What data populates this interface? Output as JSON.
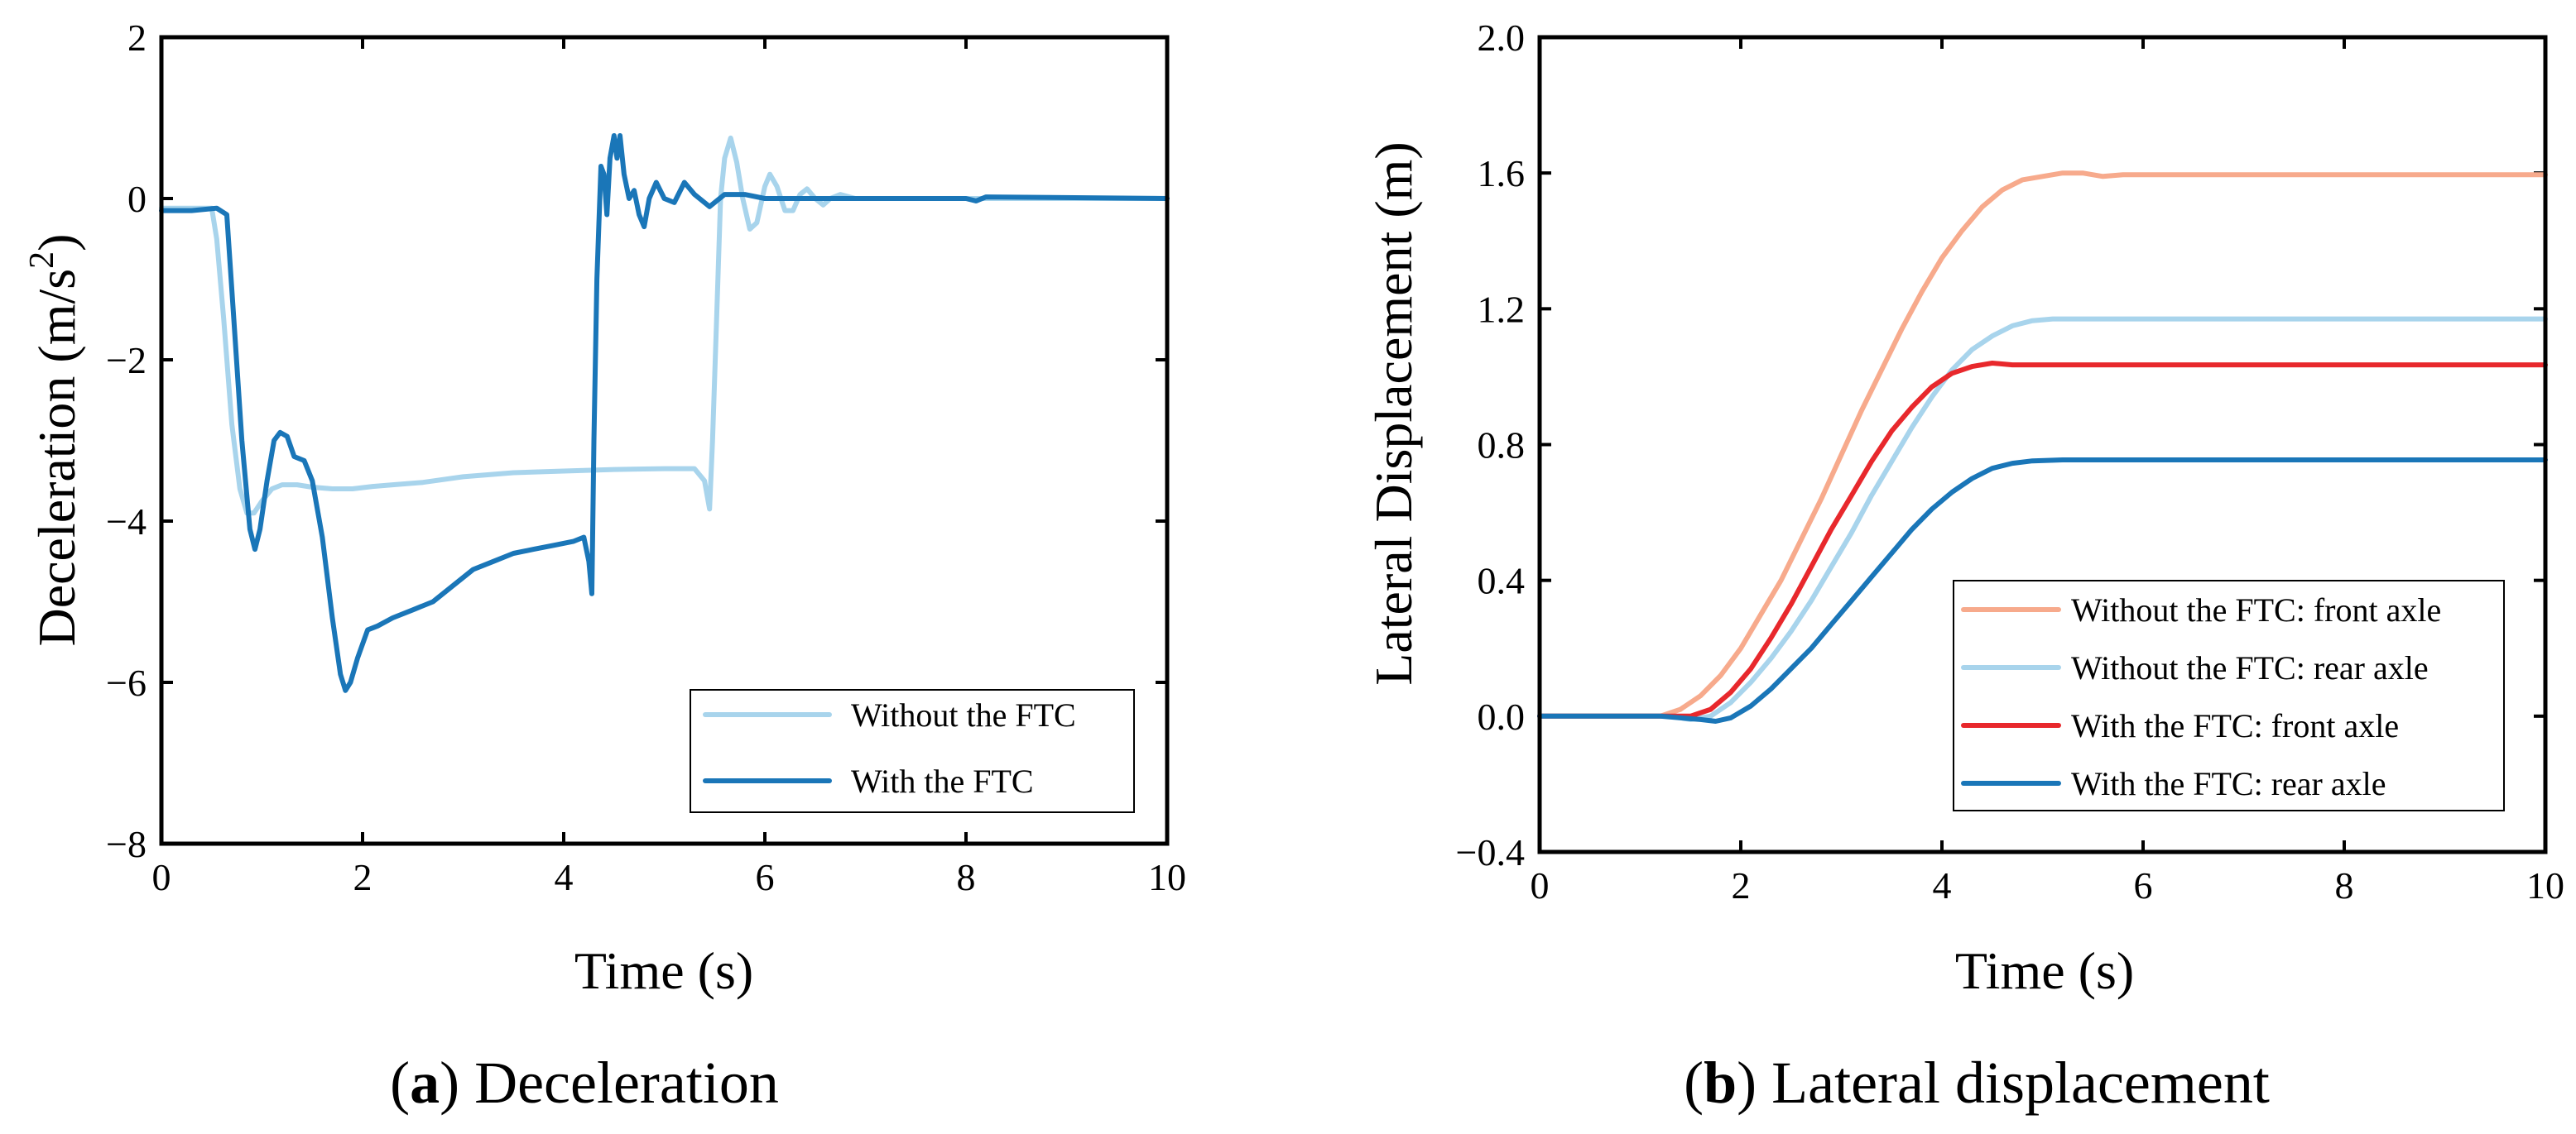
{
  "chart_data": [
    {
      "type": "line",
      "xlabel": "Time (s)",
      "ylabel": "Deceleration (m/s",
      "ylabel_sup": "2",
      "ylabel_close": ")",
      "xlim": [
        0,
        10
      ],
      "ylim": [
        -8,
        2
      ],
      "xticks": [
        0,
        2,
        4,
        6,
        8,
        10
      ],
      "yticks": [
        -8,
        -6,
        -4,
        -2,
        0,
        2
      ],
      "xtick_labels": [
        "0",
        "2",
        "4",
        "6",
        "8",
        "10"
      ],
      "ytick_labels": [
        "−8",
        "−6",
        "−4",
        "−2",
        "0",
        "2"
      ],
      "caption_letter": "a",
      "caption_text": "Deceleration",
      "legend_position": "lower-right",
      "series": [
        {
          "name": "Without the FTC",
          "color": "#a8d4ec",
          "points": [
            [
              0,
              -0.12
            ],
            [
              0.5,
              -0.12
            ],
            [
              0.55,
              -0.5
            ],
            [
              0.62,
              -1.5
            ],
            [
              0.7,
              -2.8
            ],
            [
              0.78,
              -3.6
            ],
            [
              0.85,
              -3.9
            ],
            [
              0.92,
              -3.9
            ],
            [
              1.0,
              -3.75
            ],
            [
              1.1,
              -3.6
            ],
            [
              1.2,
              -3.55
            ],
            [
              1.35,
              -3.55
            ],
            [
              1.5,
              -3.58
            ],
            [
              1.7,
              -3.6
            ],
            [
              1.9,
              -3.6
            ],
            [
              2.1,
              -3.57
            ],
            [
              2.3,
              -3.55
            ],
            [
              2.6,
              -3.52
            ],
            [
              3.0,
              -3.45
            ],
            [
              3.5,
              -3.4
            ],
            [
              4.0,
              -3.38
            ],
            [
              4.5,
              -3.36
            ],
            [
              5.0,
              -3.35
            ],
            [
              5.3,
              -3.35
            ],
            [
              5.4,
              -3.5
            ],
            [
              5.45,
              -3.85
            ],
            [
              5.48,
              -3.0
            ],
            [
              5.52,
              -1.5
            ],
            [
              5.56,
              0.0
            ],
            [
              5.6,
              0.5
            ],
            [
              5.66,
              0.75
            ],
            [
              5.72,
              0.45
            ],
            [
              5.78,
              0.0
            ],
            [
              5.85,
              -0.38
            ],
            [
              5.92,
              -0.3
            ],
            [
              6.0,
              0.15
            ],
            [
              6.05,
              0.3
            ],
            [
              6.12,
              0.15
            ],
            [
              6.2,
              -0.15
            ],
            [
              6.28,
              -0.15
            ],
            [
              6.35,
              0.05
            ],
            [
              6.42,
              0.12
            ],
            [
              6.5,
              0.0
            ],
            [
              6.58,
              -0.08
            ],
            [
              6.65,
              0.0
            ],
            [
              6.75,
              0.05
            ],
            [
              6.9,
              0.0
            ],
            [
              10,
              0.0
            ]
          ]
        },
        {
          "name": "With the FTC",
          "color": "#1a76b8",
          "points": [
            [
              0,
              -0.15
            ],
            [
              0.3,
              -0.15
            ],
            [
              0.55,
              -0.12
            ],
            [
              0.65,
              -0.2
            ],
            [
              0.72,
              -1.5
            ],
            [
              0.8,
              -3.0
            ],
            [
              0.88,
              -4.1
            ],
            [
              0.93,
              -4.35
            ],
            [
              0.98,
              -4.1
            ],
            [
              1.05,
              -3.5
            ],
            [
              1.12,
              -3.0
            ],
            [
              1.18,
              -2.9
            ],
            [
              1.25,
              -2.95
            ],
            [
              1.32,
              -3.2
            ],
            [
              1.42,
              -3.25
            ],
            [
              1.5,
              -3.5
            ],
            [
              1.6,
              -4.2
            ],
            [
              1.7,
              -5.2
            ],
            [
              1.78,
              -5.9
            ],
            [
              1.83,
              -6.1
            ],
            [
              1.88,
              -6.0
            ],
            [
              1.95,
              -5.7
            ],
            [
              2.05,
              -5.35
            ],
            [
              2.15,
              -5.3
            ],
            [
              2.3,
              -5.2
            ],
            [
              2.5,
              -5.1
            ],
            [
              2.7,
              -5.0
            ],
            [
              2.9,
              -4.8
            ],
            [
              3.1,
              -4.6
            ],
            [
              3.3,
              -4.5
            ],
            [
              3.5,
              -4.4
            ],
            [
              3.7,
              -4.35
            ],
            [
              3.9,
              -4.3
            ],
            [
              4.1,
              -4.25
            ],
            [
              4.2,
              -4.2
            ],
            [
              4.25,
              -4.5
            ],
            [
              4.28,
              -4.9
            ],
            [
              4.3,
              -3.0
            ],
            [
              4.33,
              -1.0
            ],
            [
              4.37,
              0.4
            ],
            [
              4.4,
              0.3
            ],
            [
              4.43,
              -0.2
            ],
            [
              4.46,
              0.5
            ],
            [
              4.5,
              0.78
            ],
            [
              4.53,
              0.5
            ],
            [
              4.56,
              0.78
            ],
            [
              4.6,
              0.3
            ],
            [
              4.65,
              0.0
            ],
            [
              4.7,
              0.1
            ],
            [
              4.75,
              -0.2
            ],
            [
              4.8,
              -0.35
            ],
            [
              4.85,
              0.0
            ],
            [
              4.92,
              0.2
            ],
            [
              5.0,
              0.0
            ],
            [
              5.1,
              -0.05
            ],
            [
              5.2,
              0.2
            ],
            [
              5.3,
              0.05
            ],
            [
              5.45,
              -0.1
            ],
            [
              5.6,
              0.05
            ],
            [
              5.8,
              0.05
            ],
            [
              6.0,
              0.0
            ],
            [
              6.5,
              0.0
            ],
            [
              7.0,
              0.0
            ],
            [
              8.0,
              0.0
            ],
            [
              8.1,
              -0.03
            ],
            [
              8.2,
              0.02
            ],
            [
              10,
              0.0
            ]
          ]
        }
      ]
    },
    {
      "type": "line",
      "xlabel": "Time (s)",
      "ylabel": "Lateral Displacement (m)",
      "xlim": [
        0,
        10
      ],
      "ylim": [
        -0.4,
        2.0
      ],
      "xticks": [
        0,
        2,
        4,
        6,
        8,
        10
      ],
      "yticks": [
        -0.4,
        0.0,
        0.4,
        0.8,
        1.2,
        1.6,
        2.0
      ],
      "xtick_labels": [
        "0",
        "2",
        "4",
        "6",
        "8",
        "10"
      ],
      "ytick_labels": [
        "−0.4",
        "0.0",
        "0.4",
        "0.8",
        "1.2",
        "1.6",
        "2.0"
      ],
      "caption_letter": "b",
      "caption_text": "Lateral displacement",
      "legend_position": "lower-right",
      "series": [
        {
          "name": "Without the FTC: front axle",
          "color": "#f7aa8c",
          "points": [
            [
              0,
              0.0
            ],
            [
              1.0,
              0.0
            ],
            [
              1.2,
              0.0
            ],
            [
              1.4,
              0.02
            ],
            [
              1.6,
              0.06
            ],
            [
              1.8,
              0.12
            ],
            [
              2.0,
              0.2
            ],
            [
              2.2,
              0.3
            ],
            [
              2.4,
              0.4
            ],
            [
              2.6,
              0.52
            ],
            [
              2.8,
              0.64
            ],
            [
              3.0,
              0.77
            ],
            [
              3.2,
              0.9
            ],
            [
              3.4,
              1.02
            ],
            [
              3.6,
              1.14
            ],
            [
              3.8,
              1.25
            ],
            [
              4.0,
              1.35
            ],
            [
              4.2,
              1.43
            ],
            [
              4.4,
              1.5
            ],
            [
              4.6,
              1.55
            ],
            [
              4.8,
              1.58
            ],
            [
              5.0,
              1.59
            ],
            [
              5.2,
              1.6
            ],
            [
              5.4,
              1.6
            ],
            [
              5.6,
              1.59
            ],
            [
              5.8,
              1.595
            ],
            [
              6.0,
              1.595
            ],
            [
              8.0,
              1.595
            ],
            [
              10,
              1.595
            ]
          ]
        },
        {
          "name": "Without the FTC: rear axle",
          "color": "#a8d4ec",
          "points": [
            [
              0,
              0.0
            ],
            [
              1.3,
              0.0
            ],
            [
              1.5,
              -0.01
            ],
            [
              1.7,
              0.0
            ],
            [
              1.9,
              0.04
            ],
            [
              2.1,
              0.1
            ],
            [
              2.3,
              0.17
            ],
            [
              2.5,
              0.25
            ],
            [
              2.7,
              0.34
            ],
            [
              2.9,
              0.44
            ],
            [
              3.1,
              0.54
            ],
            [
              3.3,
              0.65
            ],
            [
              3.5,
              0.75
            ],
            [
              3.7,
              0.85
            ],
            [
              3.9,
              0.94
            ],
            [
              4.1,
              1.02
            ],
            [
              4.3,
              1.08
            ],
            [
              4.5,
              1.12
            ],
            [
              4.7,
              1.15
            ],
            [
              4.9,
              1.165
            ],
            [
              5.1,
              1.17
            ],
            [
              5.4,
              1.17
            ],
            [
              6.0,
              1.17
            ],
            [
              8.0,
              1.17
            ],
            [
              10,
              1.17
            ]
          ]
        },
        {
          "name": "With the FTC: front axle",
          "color": "#e8282c",
          "points": [
            [
              0,
              0.0
            ],
            [
              1.3,
              0.0
            ],
            [
              1.5,
              0.0
            ],
            [
              1.7,
              0.02
            ],
            [
              1.9,
              0.07
            ],
            [
              2.1,
              0.14
            ],
            [
              2.3,
              0.23
            ],
            [
              2.5,
              0.33
            ],
            [
              2.7,
              0.44
            ],
            [
              2.9,
              0.55
            ],
            [
              3.1,
              0.65
            ],
            [
              3.3,
              0.75
            ],
            [
              3.5,
              0.84
            ],
            [
              3.7,
              0.91
            ],
            [
              3.9,
              0.97
            ],
            [
              4.1,
              1.01
            ],
            [
              4.3,
              1.03
            ],
            [
              4.5,
              1.04
            ],
            [
              4.7,
              1.035
            ],
            [
              5.0,
              1.035
            ],
            [
              6.0,
              1.035
            ],
            [
              8.0,
              1.035
            ],
            [
              10,
              1.035
            ]
          ]
        },
        {
          "name": "With the FTC: rear axle",
          "color": "#1a76b8",
          "points": [
            [
              0,
              0.0
            ],
            [
              1.2,
              0.0
            ],
            [
              1.4,
              -0.005
            ],
            [
              1.6,
              -0.01
            ],
            [
              1.75,
              -0.015
            ],
            [
              1.9,
              -0.005
            ],
            [
              2.1,
              0.03
            ],
            [
              2.3,
              0.08
            ],
            [
              2.5,
              0.14
            ],
            [
              2.7,
              0.2
            ],
            [
              2.9,
              0.27
            ],
            [
              3.1,
              0.34
            ],
            [
              3.3,
              0.41
            ],
            [
              3.5,
              0.48
            ],
            [
              3.7,
              0.55
            ],
            [
              3.9,
              0.61
            ],
            [
              4.1,
              0.66
            ],
            [
              4.3,
              0.7
            ],
            [
              4.5,
              0.73
            ],
            [
              4.7,
              0.745
            ],
            [
              4.9,
              0.752
            ],
            [
              5.2,
              0.755
            ],
            [
              6.0,
              0.755
            ],
            [
              8.0,
              0.755
            ],
            [
              10,
              0.755
            ]
          ]
        }
      ]
    }
  ]
}
